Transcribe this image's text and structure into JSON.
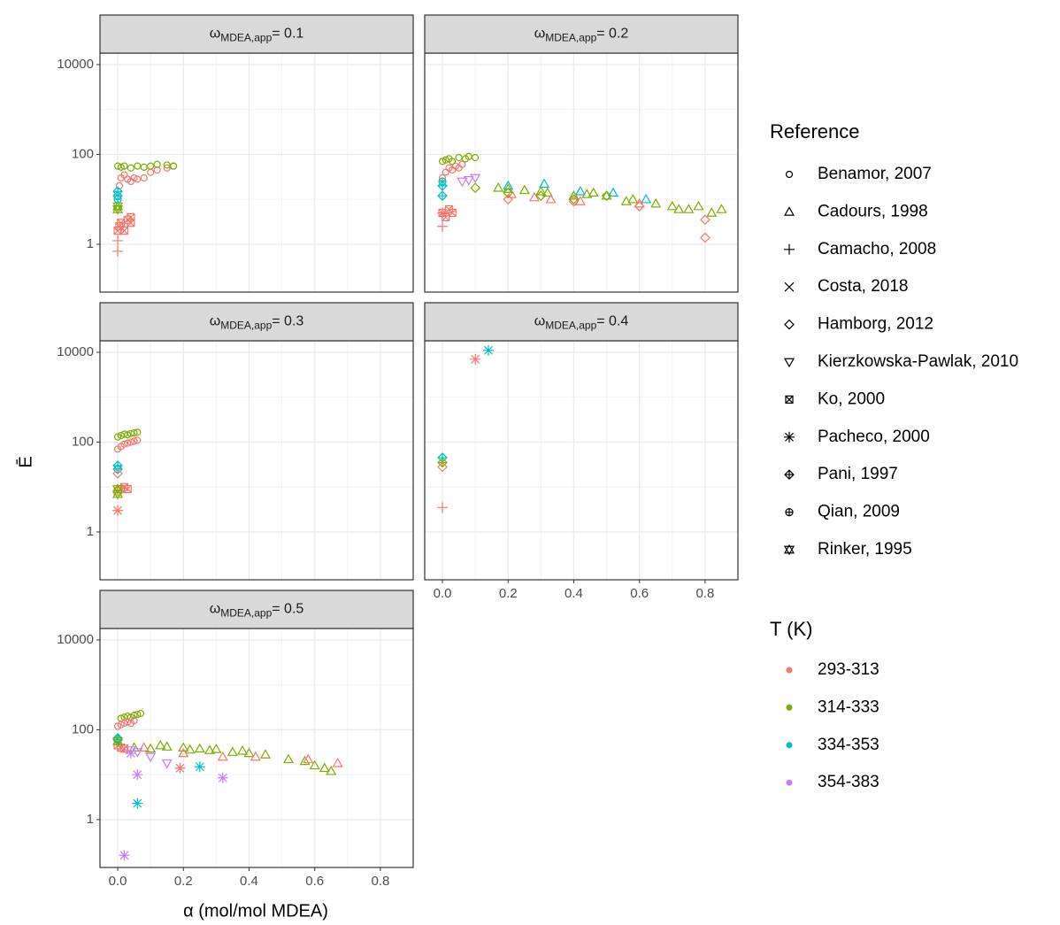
{
  "chart_data": {
    "type": "scatter",
    "x_label": "α (mol/mol MDEA)",
    "y_label": "Ē",
    "log_y": true,
    "grid": true,
    "xlim": [
      -0.054,
      0.9
    ],
    "xticks": [
      {
        "value": 0,
        "label": "0.0"
      },
      0.2,
      0.4,
      0.6,
      0.8
    ],
    "ylim": [
      0.086,
      18000
    ],
    "yticks": [
      1,
      100,
      10000
    ],
    "shape_legend": {
      "title": "Reference",
      "entries": [
        {
          "name": "Benamor, 2007",
          "shape": "circle"
        },
        {
          "name": "Cadours, 1998",
          "shape": "triangle"
        },
        {
          "name": "Camacho, 2008",
          "shape": "plus"
        },
        {
          "name": "Costa, 2018",
          "shape": "cross"
        },
        {
          "name": "Hamborg, 2012",
          "shape": "diamond"
        },
        {
          "name": "Kierzkowska-Pawlak, 2010",
          "shape": "triangle-down"
        },
        {
          "name": "Ko, 2000",
          "shape": "square-cross"
        },
        {
          "name": "Pacheco, 2000",
          "shape": "asterisk"
        },
        {
          "name": "Pani, 1997",
          "shape": "diamond-plus"
        },
        {
          "name": "Qian, 2009",
          "shape": "circle-plus"
        },
        {
          "name": "Rinker, 1995",
          "shape": "star"
        }
      ]
    },
    "color_legend": {
      "title": "T (K)",
      "entries": [
        {
          "name": "293-313",
          "color": "#F8766D"
        },
        {
          "name": "314-333",
          "color": "#7CAE00"
        },
        {
          "name": "334-353",
          "color": "#00BFC4"
        },
        {
          "name": "354-383",
          "color": "#C77CFF"
        }
      ]
    },
    "facets": [
      {
        "label": {
          "symbol": "ω",
          "subscript": "MDEA,app",
          "suffix": "= 0.1"
        },
        "series": [
          {
            "reference": "Benamor, 2007",
            "T": "293-313",
            "x": [
              0.005,
              0.01,
              0.02,
              0.03,
              0.04,
              0.05,
              0.06,
              0.08,
              0.1,
              0.12,
              0.15,
              0.17
            ],
            "values": [
              20,
              30,
              35,
              28,
              25,
              30,
              28,
              30,
              40,
              45,
              50,
              55
            ]
          },
          {
            "reference": "Benamor, 2007",
            "T": "314-333",
            "x": [
              0.0,
              0.01,
              0.02,
              0.04,
              0.06,
              0.08,
              0.1,
              0.12,
              0.15,
              0.17
            ],
            "values": [
              55,
              52,
              55,
              50,
              55,
              52,
              55,
              60,
              58,
              55
            ]
          },
          {
            "reference": "Ko, 2000",
            "T": "293-313",
            "x": [
              0,
              0.005,
              0.01,
              0.02,
              0.03,
              0.04,
              0.04
            ],
            "values": [
              2,
              2.5,
              3,
              2,
              3.5,
              3,
              4
            ]
          },
          {
            "reference": "Rinker, 1995",
            "T": "314-333",
            "x": [
              0,
              0
            ],
            "values": [
              6,
              7
            ]
          },
          {
            "reference": "Pani, 1997",
            "T": "334-353",
            "x": [
              0,
              0
            ],
            "values": [
              12,
              15
            ]
          },
          {
            "reference": "Qian, 2009",
            "T": "334-353",
            "x": [
              0
            ],
            "values": [
              10
            ]
          },
          {
            "reference": "Camacho, 2008",
            "T": "293-313",
            "x": [
              0,
              0
            ],
            "values": [
              0.7,
              1.2
            ]
          }
        ]
      },
      {
        "label": {
          "symbol": "ω",
          "subscript": "MDEA,app",
          "suffix": "= 0.2"
        },
        "series": [
          {
            "reference": "Benamor, 2007",
            "T": "293-313",
            "x": [
              0,
              0.01,
              0.02,
              0.03,
              0.04,
              0.05,
              0.06
            ],
            "values": [
              30,
              40,
              50,
              45,
              55,
              50,
              60
            ]
          },
          {
            "reference": "Benamor, 2007",
            "T": "314-333",
            "x": [
              0,
              0.01,
              0.02,
              0.03,
              0.05,
              0.07,
              0.08,
              0.1
            ],
            "values": [
              70,
              75,
              80,
              70,
              85,
              80,
              90,
              85
            ]
          },
          {
            "reference": "Cadours, 1998",
            "T": "314-333",
            "x": [
              0.17,
              0.2,
              0.25,
              0.3,
              0.32,
              0.4,
              0.44,
              0.46,
              0.5,
              0.56,
              0.58,
              0.65,
              0.7,
              0.72,
              0.75,
              0.78,
              0.82,
              0.85
            ],
            "values": [
              18,
              17,
              16,
              15,
              14,
              12,
              13,
              14,
              12,
              9,
              10,
              8,
              7,
              6,
              6,
              7,
              5,
              6
            ]
          },
          {
            "reference": "Cadours, 1998",
            "T": "334-353",
            "x": [
              0.2,
              0.31,
              0.42,
              0.52,
              0.62
            ],
            "values": [
              20,
              22,
              15,
              14,
              10
            ]
          },
          {
            "reference": "Cadours, 1998",
            "T": "293-313",
            "x": [
              0.21,
              0.28,
              0.33,
              0.42,
              0.6
            ],
            "values": [
              13,
              11,
              10,
              9,
              8
            ]
          },
          {
            "reference": "Kierzkowska-Pawlak, 2010",
            "T": "354-383",
            "x": [
              0.06,
              0.08,
              0.1
            ],
            "values": [
              25,
              27,
              30
            ]
          },
          {
            "reference": "Hamborg, 2012",
            "T": "293-313",
            "x": [
              0.2,
              0.4,
              0.6,
              0.8,
              0.8
            ],
            "values": [
              10,
              9,
              7,
              3.5,
              1.4
            ]
          },
          {
            "reference": "Hamborg, 2012",
            "T": "314-333",
            "x": [
              0.1,
              0.2,
              0.3,
              0.4,
              0.5
            ],
            "values": [
              18,
              14,
              12,
              10,
              12
            ]
          },
          {
            "reference": "Ko, 2000",
            "T": "293-313",
            "x": [
              0,
              0.01,
              0.02,
              0.03
            ],
            "values": [
              5,
              4,
              6,
              5
            ]
          },
          {
            "reference": "Camacho, 2008",
            "T": "293-313",
            "x": [
              0,
              0
            ],
            "values": [
              2.5,
              5
            ]
          },
          {
            "reference": "Qian, 2009",
            "T": "334-353",
            "x": [
              0
            ],
            "values": [
              25
            ]
          },
          {
            "reference": "Pani, 1997",
            "T": "334-353",
            "x": [
              0,
              0
            ],
            "values": [
              12,
              20
            ]
          }
        ]
      },
      {
        "label": {
          "symbol": "ω",
          "subscript": "MDEA,app",
          "suffix": "= 0.3"
        },
        "series": [
          {
            "reference": "Benamor, 2007",
            "T": "314-333",
            "x": [
              0,
              0.01,
              0.02,
              0.03,
              0.04,
              0.05,
              0.06
            ],
            "values": [
              130,
              140,
              150,
              145,
              155,
              160,
              165
            ]
          },
          {
            "reference": "Benamor, 2007",
            "T": "293-313",
            "x": [
              0,
              0.01,
              0.02,
              0.03,
              0.04,
              0.05,
              0.06
            ],
            "values": [
              70,
              80,
              90,
              95,
              100,
              105,
              110
            ]
          },
          {
            "reference": "Pani, 1997",
            "T": "334-353",
            "x": [
              0,
              0
            ],
            "values": [
              25,
              30
            ]
          },
          {
            "reference": "Hamborg, 2012",
            "T": "293-313",
            "x": [
              0
            ],
            "values": [
              20
            ]
          },
          {
            "reference": "Ko, 2000",
            "T": "293-313",
            "x": [
              0,
              0.01,
              0.02,
              0.03
            ],
            "values": [
              8,
              9,
              10,
              9
            ]
          },
          {
            "reference": "Rinker, 1995",
            "T": "314-333",
            "x": [
              0,
              0
            ],
            "values": [
              7,
              9
            ]
          },
          {
            "reference": "Pacheco, 2000",
            "T": "293-313",
            "x": [
              0
            ],
            "values": [
              3
            ]
          }
        ]
      },
      {
        "label": {
          "symbol": "ω",
          "subscript": "MDEA,app",
          "suffix": "= 0.4"
        },
        "series": [
          {
            "reference": "Pacheco, 2000",
            "T": "293-313",
            "x": [
              0.1
            ],
            "values": [
              7000
            ]
          },
          {
            "reference": "Pacheco, 2000",
            "T": "334-353",
            "x": [
              0.14
            ],
            "values": [
              11000
            ]
          },
          {
            "reference": "Pani, 1997",
            "T": "334-353",
            "x": [
              0
            ],
            "values": [
              45
            ]
          },
          {
            "reference": "Pani, 1997",
            "T": "314-333",
            "x": [
              0
            ],
            "values": [
              35
            ]
          },
          {
            "reference": "Hamborg, 2012",
            "T": "293-313",
            "x": [
              0
            ],
            "values": [
              28
            ]
          },
          {
            "reference": "Camacho, 2008",
            "T": "293-313",
            "x": [
              0
            ],
            "values": [
              3.5
            ]
          }
        ]
      },
      {
        "label": {
          "symbol": "ω",
          "subscript": "MDEA,app",
          "suffix": "= 0.5"
        },
        "series": [
          {
            "reference": "Benamor, 2007",
            "T": "314-333",
            "x": [
              0.01,
              0.02,
              0.03,
              0.04,
              0.05,
              0.06,
              0.07
            ],
            "values": [
              180,
              190,
              200,
              190,
              210,
              220,
              230
            ]
          },
          {
            "reference": "Benamor, 2007",
            "T": "293-313",
            "x": [
              0,
              0.01,
              0.02,
              0.03,
              0.04,
              0.05
            ],
            "values": [
              120,
              130,
              140,
              150,
              140,
              160
            ]
          },
          {
            "reference": "Cadours, 1998",
            "T": "314-333",
            "x": [
              0.05,
              0.1,
              0.13,
              0.15,
              0.2,
              0.22,
              0.25,
              0.28,
              0.3,
              0.35,
              0.38,
              0.4,
              0.45,
              0.52,
              0.57,
              0.6,
              0.63,
              0.65
            ],
            "values": [
              40,
              38,
              45,
              42,
              40,
              36,
              38,
              35,
              37,
              32,
              34,
              30,
              28,
              22,
              20,
              16,
              14,
              12
            ]
          },
          {
            "reference": "Cadours, 1998",
            "T": "293-313",
            "x": [
              0.08,
              0.2,
              0.32,
              0.42,
              0.58,
              0.67
            ],
            "values": [
              40,
              30,
              25,
              25,
              22,
              18
            ]
          },
          {
            "reference": "Pacheco, 2000",
            "T": "354-383",
            "x": [
              0.04,
              0.06,
              0.02,
              0.32
            ],
            "values": [
              30,
              10,
              0.16,
              8.5
            ]
          },
          {
            "reference": "Pacheco, 2000",
            "T": "334-353",
            "x": [
              0.25,
              0.06
            ],
            "values": [
              15,
              2.3
            ]
          },
          {
            "reference": "Pacheco, 2000",
            "T": "293-313",
            "x": [
              0.19
            ],
            "values": [
              14
            ]
          },
          {
            "reference": "Kierzkowska-Pawlak, 2010",
            "T": "354-383",
            "x": [
              0.04,
              0.06,
              0.1,
              0.15
            ],
            "values": [
              35,
              32,
              25,
              18
            ]
          },
          {
            "reference": "Ko, 2000",
            "T": "293-313",
            "x": [
              0,
              0.01,
              0.02
            ],
            "values": [
              45,
              40,
              38
            ]
          },
          {
            "reference": "Pani, 1997",
            "T": "334-353",
            "x": [
              0,
              0
            ],
            "values": [
              60,
              65
            ]
          },
          {
            "reference": "Rinker, 1995",
            "T": "314-333",
            "x": [
              0
            ],
            "values": [
              55
            ]
          }
        ]
      }
    ]
  }
}
